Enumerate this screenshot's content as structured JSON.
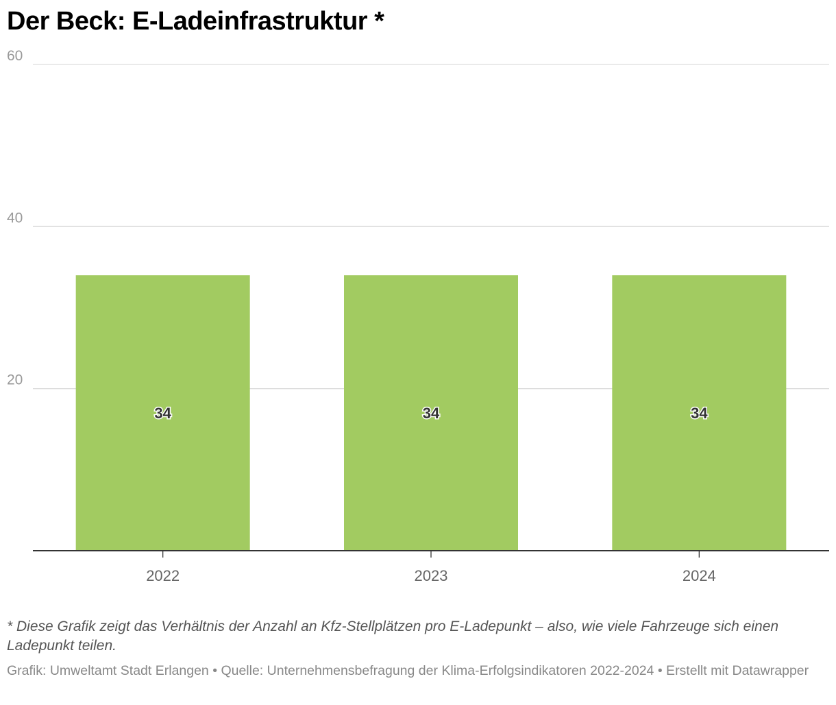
{
  "title": "Der Beck: E-Ladeinfrastruktur *",
  "note": "* Diese Grafik zeigt das Verhältnis der Anzahl an Kfz-Stellplätzen pro E-Ladepunkt – also, wie viele Fahrzeuge sich einen Ladepunkt teilen.",
  "footer": "Grafik: Umweltamt Stadt Erlangen • Quelle: Unternehmensbefragung der Klima-Erfolgsindikatoren 2022-2024 • Erstellt mit Datawrapper",
  "chart_data": {
    "type": "bar",
    "categories": [
      "2022",
      "2023",
      "2024"
    ],
    "values": [
      34,
      34,
      34
    ],
    "data_labels": [
      "34",
      "34",
      "34"
    ],
    "ylim": [
      0,
      60
    ],
    "yticks": [
      20,
      40,
      60
    ],
    "ytick_labels": [
      "20",
      "40",
      "60"
    ],
    "grid": true,
    "bar_color": "#a2cb61",
    "xlabel": "",
    "ylabel": ""
  }
}
